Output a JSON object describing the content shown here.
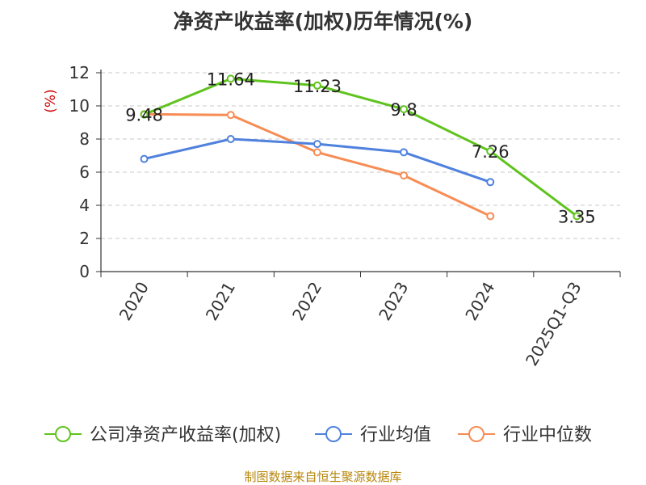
{
  "chart_data": {
    "type": "line",
    "title": "净资产收益率(加权)历年情况(%)",
    "ylabel": "(%)",
    "xlabel": "",
    "categories": [
      "2020",
      "2021",
      "2022",
      "2023",
      "2024",
      "2025Q1-Q3"
    ],
    "ylim": [
      0,
      12
    ],
    "yticks": [
      0,
      2,
      4,
      6,
      8,
      10,
      12
    ],
    "grid": true,
    "legend_position": "bottom",
    "series": [
      {
        "name": "公司净资产收益率(加权)",
        "color": "#5fc31d",
        "values": [
          9.48,
          11.64,
          11.23,
          9.8,
          7.26,
          3.35
        ],
        "labels": [
          "9.48",
          "11.64",
          "11.23",
          "9.8",
          "7.26",
          "3.35"
        ],
        "show_labels": true
      },
      {
        "name": "行业均值",
        "color": "#4f81dd",
        "values": [
          6.8,
          8.0,
          7.7,
          7.2,
          5.4,
          null
        ],
        "show_labels": false
      },
      {
        "name": "行业中位数",
        "color": "#f78c54",
        "values": [
          9.5,
          9.45,
          7.2,
          5.8,
          3.35,
          null
        ],
        "show_labels": false
      }
    ],
    "source": "制图数据来自恒生聚源数据库"
  }
}
